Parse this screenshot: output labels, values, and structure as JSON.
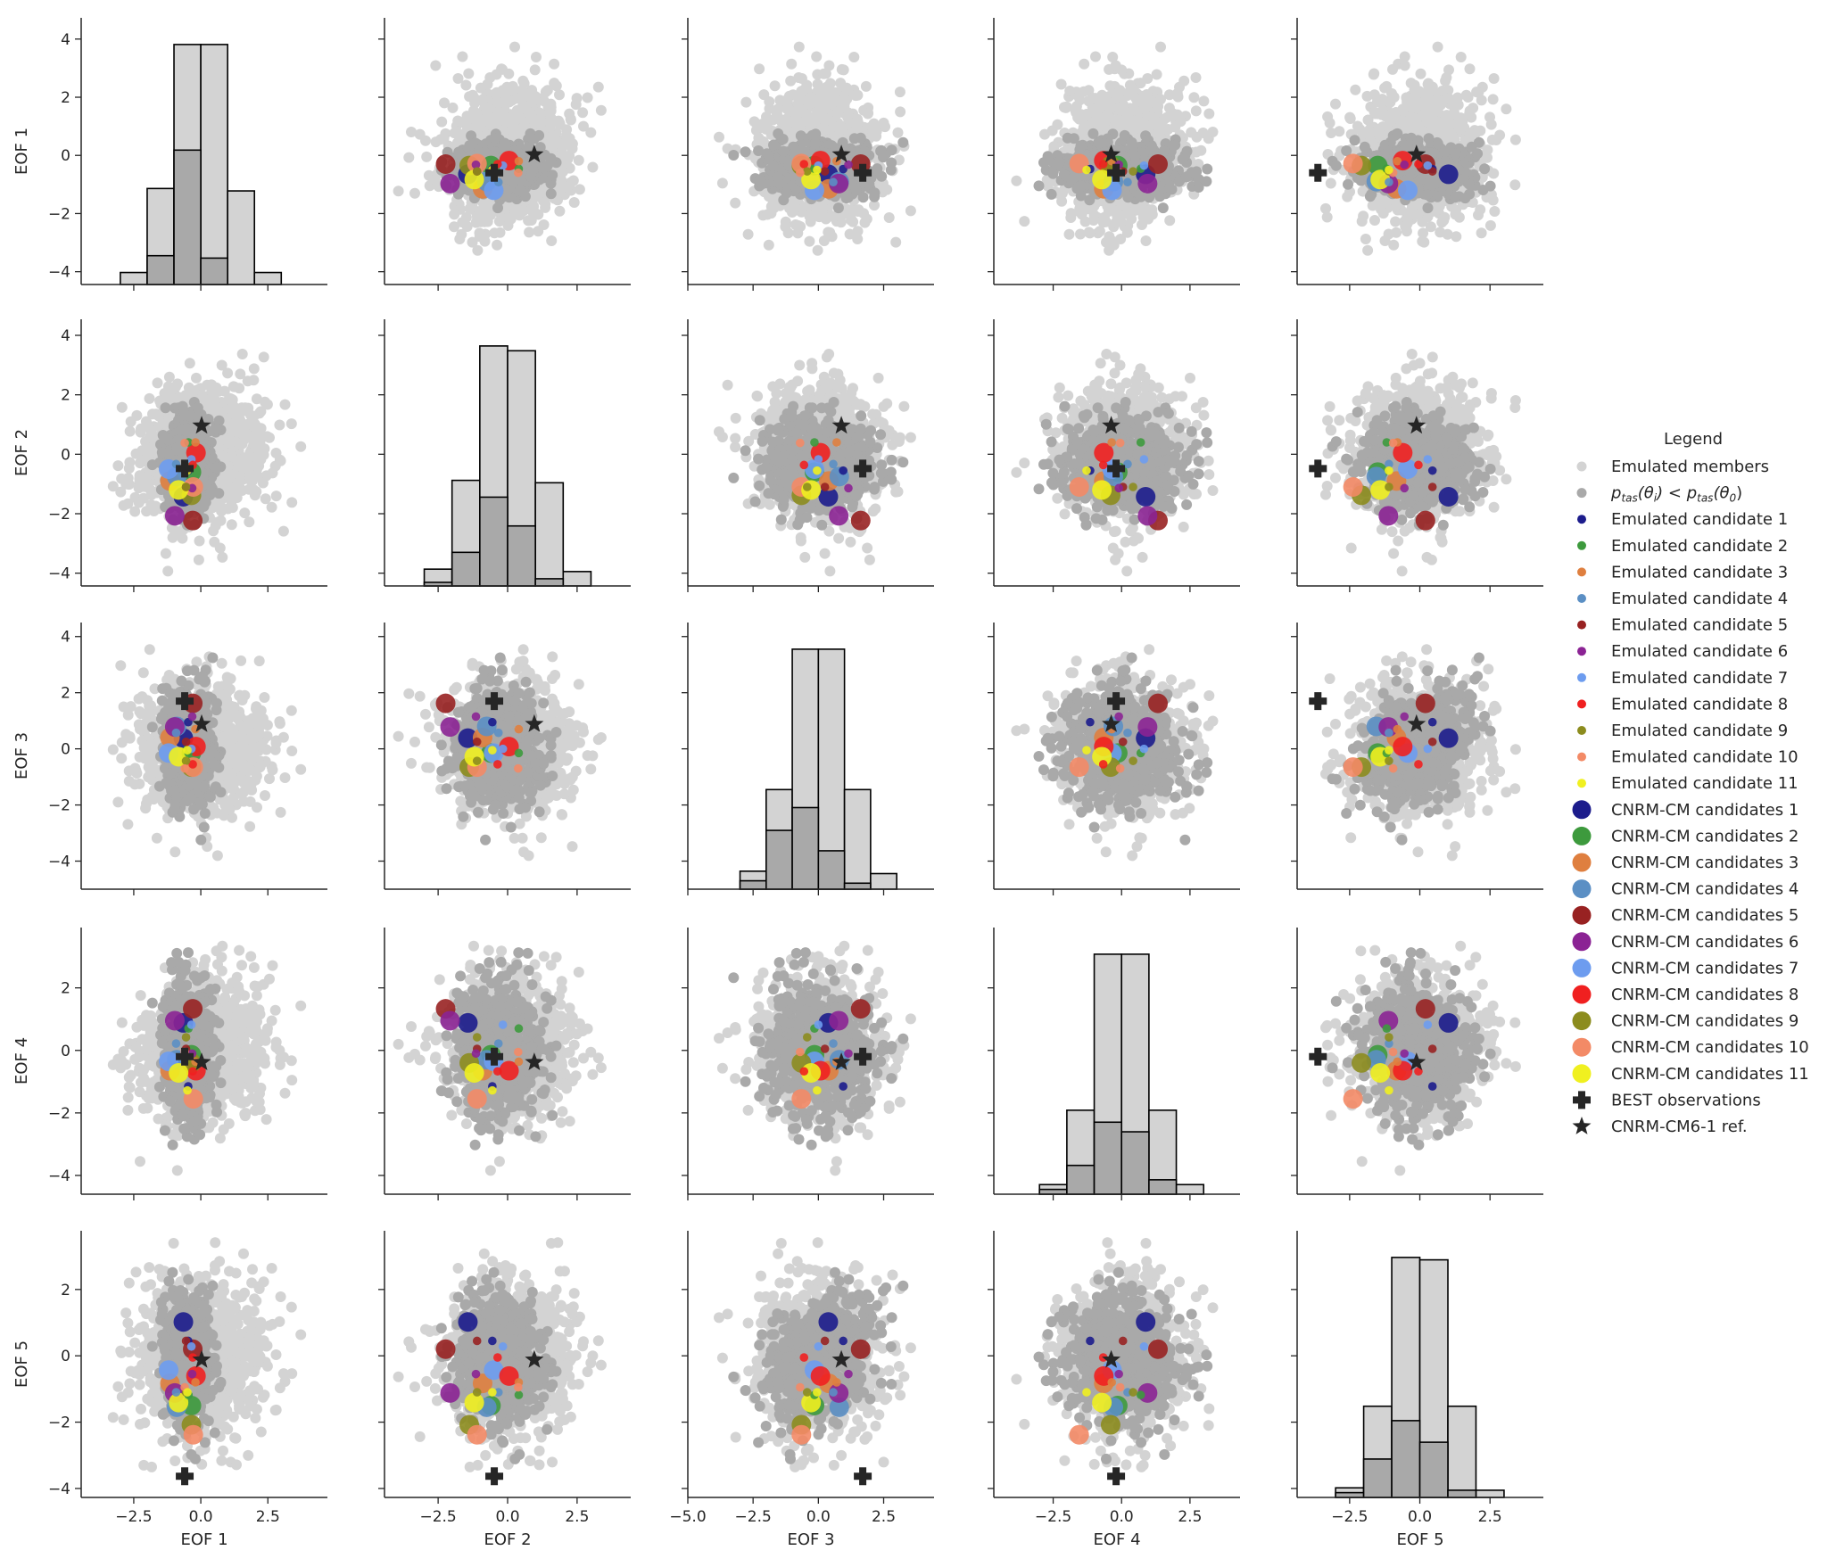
{
  "chart_data": {
    "type": "scatter",
    "subtype": "pairplot",
    "grid": false,
    "legend_placement": "right",
    "variables": [
      {
        "name": "EOF 1",
        "xlim": [
          -4.46,
          4.72
        ],
        "ylim": [
          -4.44,
          4.73
        ],
        "xticks": [
          {
            "v": -2.5,
            "label": "−2.5"
          },
          {
            "v": 0,
            "label": "0.0"
          },
          {
            "v": 2.5,
            "label": "2.5"
          }
        ],
        "yticks": [
          {
            "v": -4,
            "label": "−4"
          },
          {
            "v": -2,
            "label": "−2"
          },
          {
            "v": 0,
            "label": "0"
          },
          {
            "v": 2,
            "label": "2"
          },
          {
            "v": 4,
            "label": "4"
          }
        ]
      },
      {
        "name": "EOF 2",
        "xlim": [
          -4.43,
          4.43
        ],
        "ylim": [
          -4.43,
          4.54
        ],
        "xticks": [
          {
            "v": -2.5,
            "label": "−2.5"
          },
          {
            "v": 0,
            "label": "0.0"
          },
          {
            "v": 2.5,
            "label": "2.5"
          }
        ],
        "yticks": [
          {
            "v": -4,
            "label": "−4"
          },
          {
            "v": -2,
            "label": "−2"
          },
          {
            "v": 0,
            "label": "0"
          },
          {
            "v": 2,
            "label": "2"
          },
          {
            "v": 4,
            "label": "4"
          }
        ]
      },
      {
        "name": "EOF 3",
        "xlim": [
          -5.0,
          4.43
        ],
        "ylim": [
          -5.0,
          4.5
        ],
        "xticks": [
          {
            "v": -5,
            "label": "−5.0"
          },
          {
            "v": -2.5,
            "label": "−2.5"
          },
          {
            "v": 0,
            "label": "0.0"
          },
          {
            "v": 2.5,
            "label": "2.5"
          }
        ],
        "yticks": [
          {
            "v": -4,
            "label": "−4"
          },
          {
            "v": -2,
            "label": "−2"
          },
          {
            "v": 0,
            "label": "0"
          },
          {
            "v": 2,
            "label": "2"
          },
          {
            "v": 4,
            "label": "4"
          }
        ]
      },
      {
        "name": "EOF 4",
        "xlim": [
          -4.67,
          4.33
        ],
        "ylim": [
          -4.6,
          3.93
        ],
        "xticks": [
          {
            "v": -2.5,
            "label": "−2.5"
          },
          {
            "v": 0,
            "label": "0.0"
          },
          {
            "v": 2.5,
            "label": "2.5"
          }
        ],
        "yticks": [
          {
            "v": -4,
            "label": "−4"
          },
          {
            "v": -2,
            "label": "−2"
          },
          {
            "v": 0,
            "label": "0"
          },
          {
            "v": 2,
            "label": "2"
          }
        ]
      },
      {
        "name": "EOF 5",
        "xlim": [
          -4.37,
          4.4
        ],
        "ylim": [
          -4.27,
          3.77
        ],
        "xticks": [
          {
            "v": -2.5,
            "label": "−2.5"
          },
          {
            "v": 0,
            "label": "0.0"
          },
          {
            "v": 2.5,
            "label": "2.5"
          }
        ],
        "yticks": [
          {
            "v": -4,
            "label": "−4"
          },
          {
            "v": -2,
            "label": "−2"
          },
          {
            "v": 0,
            "label": "0"
          },
          {
            "v": 2,
            "label": "2"
          }
        ]
      }
    ],
    "emulated_members_distribution": {
      "mean": [
        0,
        0,
        0,
        0,
        0
      ],
      "std": [
        1.15,
        1.15,
        1.15,
        1.1,
        1.1
      ]
    },
    "subset_distribution": {
      "mean": [
        -0.5,
        -0.35,
        0,
        0,
        -0.1
      ],
      "std": [
        0.42,
        0.75,
        1.0,
        1.0,
        0.95
      ]
    },
    "histograms": [
      {
        "variable": "EOF 1",
        "bin_edges": [
          -3,
          -2,
          -1,
          0,
          1,
          2,
          3
        ],
        "all": [
          0.05,
          0.4,
          1.0,
          1.0,
          0.39,
          0.05
        ],
        "subset": [
          0,
          0.12,
          0.56,
          0.11,
          0,
          0
        ]
      },
      {
        "variable": "EOF 2",
        "bin_edges": [
          -3,
          -2,
          -1,
          0,
          1,
          2,
          3
        ],
        "all": [
          0.07,
          0.44,
          1.0,
          0.98,
          0.43,
          0.06
        ],
        "subset": [
          0.015,
          0.14,
          0.37,
          0.25,
          0.03,
          0
        ]
      },
      {
        "variable": "EOF 3",
        "bin_edges": [
          -3,
          -2,
          -1,
          0,
          1,
          2,
          3
        ],
        "all": [
          0.075,
          0.415,
          1.0,
          1.0,
          0.415,
          0.065
        ],
        "subset": [
          0.035,
          0.245,
          0.34,
          0.16,
          0.025,
          0
        ]
      },
      {
        "variable": "EOF 4",
        "bin_edges": [
          -3,
          -2,
          -1,
          0,
          1,
          2,
          3
        ],
        "all": [
          0.04,
          0.35,
          1.0,
          1.0,
          0.35,
          0.04
        ],
        "subset": [
          0.02,
          0.12,
          0.3,
          0.26,
          0.06,
          0
        ]
      },
      {
        "variable": "EOF 5",
        "bin_edges": [
          -3,
          -2,
          -1,
          0,
          1,
          2,
          3
        ],
        "all": [
          0.04,
          0.38,
          1.0,
          0.99,
          0.38,
          0.03
        ],
        "subset": [
          0.02,
          0.16,
          0.32,
          0.23,
          0.03,
          0
        ]
      }
    ],
    "colors": {
      "members": "#d3d3d3",
      "subset": "#a9a9a9",
      "candidates": [
        "#1c1c8c",
        "#3d9a3d",
        "#df7f3f",
        "#5b8fc4",
        "#982222",
        "#8b2394",
        "#6d9cef",
        "#f02020",
        "#8c8c1e",
        "#f38a66",
        "#f0f020"
      ],
      "markers": "#262626"
    },
    "emulated_candidates": [
      [
        -0.47,
        -0.55,
        0.95,
        -1.15,
        0.45
      ],
      [
        -0.46,
        0.4,
        -0.15,
        0.7,
        -1.18
      ],
      [
        -0.2,
        0.4,
        0.7,
        -0.36,
        -0.8
      ],
      [
        -0.92,
        -0.33,
        0.57,
        0.22,
        -1.1
      ],
      [
        -0.55,
        -1.1,
        0.25,
        0.05,
        0.45
      ],
      [
        -0.32,
        -1.14,
        1.15,
        -0.1,
        -0.55
      ],
      [
        -0.35,
        -0.17,
        0.0,
        0.82,
        0.28
      ],
      [
        -0.3,
        -0.36,
        -0.55,
        -0.67,
        -0.05
      ],
      [
        -0.55,
        -1.1,
        -0.43,
        0.42,
        -1.1
      ],
      [
        -0.6,
        0.38,
        -0.7,
        -0.05,
        -0.95
      ],
      [
        -0.5,
        -0.55,
        -0.05,
        -1.28,
        -1.1
      ]
    ],
    "cnrm_candidates": [
      [
        -0.65,
        -1.43,
        0.38,
        0.88,
        1.02
      ],
      [
        -0.35,
        -0.6,
        -0.15,
        -0.14,
        -1.5
      ],
      [
        -1.15,
        -0.9,
        0.4,
        -0.65,
        -0.83
      ],
      [
        -0.9,
        -0.75,
        0.8,
        -0.3,
        -1.55
      ],
      [
        -0.3,
        -2.23,
        1.62,
        1.33,
        0.2
      ],
      [
        -0.97,
        -2.07,
        0.78,
        0.95,
        -1.12
      ],
      [
        -1.2,
        -0.5,
        -0.15,
        -0.35,
        -0.43
      ],
      [
        -0.18,
        0.05,
        0.08,
        -0.65,
        -0.61
      ],
      [
        -0.35,
        -1.38,
        -0.65,
        -0.4,
        -2.08
      ],
      [
        -0.28,
        -1.1,
        -0.65,
        -1.55,
        -2.38
      ],
      [
        -0.83,
        -1.2,
        -0.28,
        -0.72,
        -1.41
      ]
    ],
    "best_observations": [
      -0.6,
      -0.48,
      1.7,
      -0.2,
      -3.63
    ],
    "reference": [
      0.03,
      0.96,
      0.88,
      -0.38,
      -0.12
    ],
    "legend": {
      "title": "Legend",
      "math_label_parts": [
        [
          "p",
          "tas"
        ],
        [
          "(θ",
          "i"
        ],
        [
          ") < p",
          "tas"
        ],
        [
          "(θ",
          "0"
        ],
        [
          ")",
          ""
        ]
      ],
      "entries": [
        {
          "label": "Emulated members",
          "marker": "members"
        },
        {
          "label": "",
          "marker": "subset",
          "math": true
        },
        {
          "label": "Emulated candidate 1",
          "marker": "small",
          "ci": 0
        },
        {
          "label": "Emulated candidate 2",
          "marker": "small",
          "ci": 1
        },
        {
          "label": "Emulated candidate 3",
          "marker": "small",
          "ci": 2
        },
        {
          "label": "Emulated candidate 4",
          "marker": "small",
          "ci": 3
        },
        {
          "label": "Emulated candidate 5",
          "marker": "small",
          "ci": 4
        },
        {
          "label": "Emulated candidate 6",
          "marker": "small",
          "ci": 5
        },
        {
          "label": "Emulated candidate 7",
          "marker": "small",
          "ci": 6
        },
        {
          "label": "Emulated candidate 8",
          "marker": "small",
          "ci": 7
        },
        {
          "label": "Emulated candidate 9",
          "marker": "small",
          "ci": 8
        },
        {
          "label": "Emulated candidate 10",
          "marker": "small",
          "ci": 9
        },
        {
          "label": "Emulated candidate 11",
          "marker": "small",
          "ci": 10
        },
        {
          "label": "CNRM-CM candidates 1",
          "marker": "large",
          "ci": 0
        },
        {
          "label": "CNRM-CM candidates 2",
          "marker": "large",
          "ci": 1
        },
        {
          "label": "CNRM-CM candidates 3",
          "marker": "large",
          "ci": 2
        },
        {
          "label": "CNRM-CM candidates 4",
          "marker": "large",
          "ci": 3
        },
        {
          "label": "CNRM-CM candidates 5",
          "marker": "large",
          "ci": 4
        },
        {
          "label": "CNRM-CM candidates 6",
          "marker": "large",
          "ci": 5
        },
        {
          "label": "CNRM-CM candidates 7",
          "marker": "large",
          "ci": 6
        },
        {
          "label": "CNRM-CM candidates 8",
          "marker": "large",
          "ci": 7
        },
        {
          "label": "CNRM-CM candidates 9",
          "marker": "large",
          "ci": 8
        },
        {
          "label": "CNRM-CM candidates 10",
          "marker": "large",
          "ci": 9
        },
        {
          "label": "CNRM-CM candidates 11",
          "marker": "large",
          "ci": 10
        },
        {
          "label": "BEST observations",
          "marker": "plus"
        },
        {
          "label": "CNRM-CM6-1 ref.",
          "marker": "star"
        }
      ]
    }
  }
}
